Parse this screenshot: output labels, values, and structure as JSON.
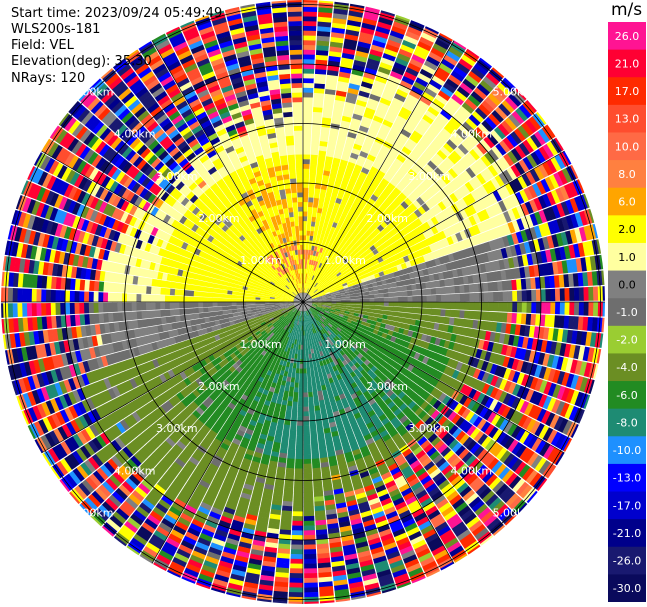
{
  "header": {
    "start_time": "Start time: 2023/09/24 05:49:49",
    "instrument": "WLS200s-181",
    "field": "Field: VEL",
    "elevation": "Elevation(deg): 35.30",
    "nrays": "NRays: 120"
  },
  "colorbar": {
    "unit": "m/s",
    "levels": [
      {
        "label": "26.0",
        "color": "#ff1493"
      },
      {
        "label": "21.0",
        "color": "#ff0033"
      },
      {
        "label": "17.0",
        "color": "#ff2a00"
      },
      {
        "label": "13.0",
        "color": "#ff4d2e"
      },
      {
        "label": "10.0",
        "color": "#ff6a45"
      },
      {
        "label": "8.0",
        "color": "#ff8040"
      },
      {
        "label": "6.0",
        "color": "#ffa500"
      },
      {
        "label": "2.0",
        "color": "#ffff00"
      },
      {
        "label": "1.0",
        "color": "#ffffa0"
      },
      {
        "label": "0.0",
        "color": "#808080"
      },
      {
        "label": "-1.0",
        "color": "#6e6e6e"
      },
      {
        "label": "-2.0",
        "color": "#9acd32"
      },
      {
        "label": "-4.0",
        "color": "#6b8e23"
      },
      {
        "label": "-6.0",
        "color": "#228b22"
      },
      {
        "label": "-8.0",
        "color": "#1e8b73"
      },
      {
        "label": "-10.0",
        "color": "#1e90ff"
      },
      {
        "label": "-13.0",
        "color": "#0000ff"
      },
      {
        "label": "-17.0",
        "color": "#0000cd"
      },
      {
        "label": "-21.0",
        "color": "#00008b"
      },
      {
        "label": "-26.0",
        "color": "#191970"
      },
      {
        "label": "-30.0",
        "color": "#0a0a5c"
      }
    ]
  },
  "chart_data": {
    "type": "heatmap",
    "projection": "polar-ppi",
    "field": "VEL",
    "nrays": 120,
    "range_ring_labels": [
      "1.00km",
      "2.00km",
      "3.00km",
      "4.00km",
      "5.00km"
    ],
    "range_rings_km": [
      1,
      2,
      3,
      4,
      5
    ],
    "max_range_km": 5.2,
    "pattern": {
      "inner_north_core": "orange ~6 m/s with small red/pink spot",
      "north_band": "yellow 1-2 m/s",
      "south_band": "green / olive -2 to -6 m/s",
      "zero_line": "gray 0 m/s band running from west to east",
      "outer_range": "noisy multi-colored beyond ~3.5 km"
    }
  }
}
